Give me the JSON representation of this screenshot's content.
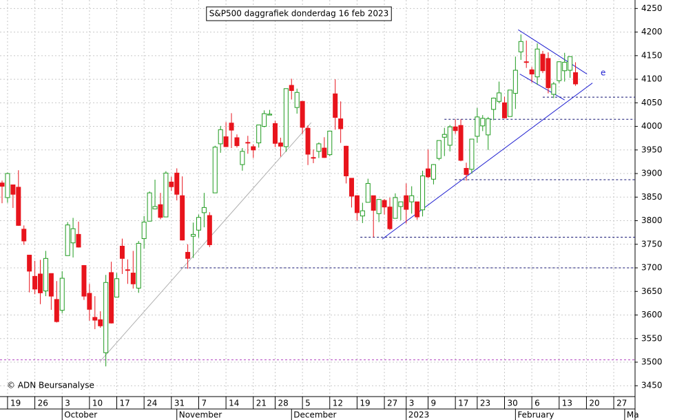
{
  "chart_data": {
    "type": "candlestick",
    "title": "S&P500 daggrafiek donderdag 16 feb 2023",
    "credit": "© ADN Beursanalyse",
    "up_color": "#1e9a1e",
    "down_color": "#e8141c",
    "grid": true,
    "ylim": [
      3427,
      4268
    ],
    "xlim": [
      -0.38,
      115.9
    ],
    "yticks": [
      3450,
      3500,
      3550,
      3600,
      3650,
      3700,
      3750,
      3800,
      3850,
      3900,
      3950,
      4000,
      4050,
      4100,
      4150,
      4200,
      4250
    ],
    "xticks": [
      {
        "value": 1,
        "label": "19"
      },
      {
        "value": 6,
        "label": "26"
      },
      {
        "value": 11,
        "label": "3"
      },
      {
        "value": 16,
        "label": "10"
      },
      {
        "value": 21,
        "label": "17"
      },
      {
        "value": 26,
        "label": "24"
      },
      {
        "value": 31,
        "label": "31"
      },
      {
        "value": 36,
        "label": "7"
      },
      {
        "value": 41,
        "label": "14"
      },
      {
        "value": 46,
        "label": "21"
      },
      {
        "value": 50,
        "label": "28"
      },
      {
        "value": 55,
        "label": "5"
      },
      {
        "value": 60,
        "label": "12"
      },
      {
        "value": 65,
        "label": "19"
      },
      {
        "value": 70,
        "label": "27"
      },
      {
        "value": 74,
        "label": "3"
      },
      {
        "value": 78,
        "label": "9"
      },
      {
        "value": 83,
        "label": "17"
      },
      {
        "value": 87,
        "label": "23"
      },
      {
        "value": 92,
        "label": "30"
      },
      {
        "value": 97,
        "label": "6"
      },
      {
        "value": 102,
        "label": "13"
      },
      {
        "value": 107,
        "label": "20"
      },
      {
        "value": 112,
        "label": "27"
      }
    ],
    "months": [
      {
        "value": 11,
        "label": "October"
      },
      {
        "value": 32,
        "label": "November"
      },
      {
        "value": 53,
        "label": "December"
      },
      {
        "value": 74,
        "label": "2023"
      },
      {
        "value": 94,
        "label": "February"
      },
      {
        "value": 114,
        "label": "Ma"
      }
    ],
    "ohlc": [
      [
        3880,
        3885,
        3837,
        3873
      ],
      [
        3849,
        3902,
        3838,
        3900
      ],
      [
        3876,
        3876,
        3827,
        3856
      ],
      [
        3871,
        3907,
        3789,
        3790
      ],
      [
        3782,
        3790,
        3749,
        3757
      ],
      [
        3727,
        3727,
        3648,
        3693
      ],
      [
        3682,
        3715,
        3644,
        3655
      ],
      [
        3687,
        3717,
        3623,
        3647
      ],
      [
        3651,
        3736,
        3640,
        3720
      ],
      [
        3688,
        3688,
        3611,
        3640
      ],
      [
        3633,
        3672,
        3584,
        3586
      ],
      [
        3610,
        3693,
        3604,
        3678
      ],
      [
        3726,
        3797,
        3726,
        3791
      ],
      [
        3753,
        3806,
        3722,
        3783
      ],
      [
        3771,
        3798,
        3743,
        3744
      ],
      [
        3705,
        3706,
        3632,
        3640
      ],
      [
        3646,
        3666,
        3588,
        3612
      ],
      [
        3595,
        3640,
        3570,
        3589
      ],
      [
        3590,
        3608,
        3573,
        3577
      ],
      [
        3520,
        3685,
        3491,
        3669
      ],
      [
        3690,
        3713,
        3582,
        3583
      ],
      [
        3638,
        3689,
        3638,
        3677
      ],
      [
        3746,
        3762,
        3687,
        3720
      ],
      [
        3696,
        3718,
        3666,
        3695
      ],
      [
        3689,
        3736,
        3656,
        3666
      ],
      [
        3657,
        3757,
        3647,
        3752
      ],
      [
        3762,
        3810,
        3741,
        3797
      ],
      [
        3799,
        3862,
        3799,
        3859
      ],
      [
        3825,
        3887,
        3824,
        3830
      ],
      [
        3834,
        3859,
        3803,
        3807
      ],
      [
        3808,
        3905,
        3808,
        3901
      ],
      [
        3882,
        3893,
        3863,
        3872
      ],
      [
        3901,
        3911,
        3843,
        3856
      ],
      [
        3853,
        3894,
        3758,
        3759
      ],
      [
        3733,
        3750,
        3698,
        3720
      ],
      [
        3767,
        3796,
        3721,
        3771
      ],
      [
        3780,
        3813,
        3764,
        3807
      ],
      [
        3817,
        3859,
        3786,
        3828
      ],
      [
        3811,
        3818,
        3744,
        3749
      ],
      [
        3859,
        3959,
        3859,
        3956
      ],
      [
        3963,
        4001,
        3944,
        3993
      ],
      [
        3978,
        4009,
        3956,
        3957
      ],
      [
        4007,
        4028,
        3954,
        3992
      ],
      [
        3976,
        3983,
        3955,
        3959
      ],
      [
        3919,
        3954,
        3906,
        3947
      ],
      [
        3966,
        3980,
        3942,
        3965
      ],
      [
        3957,
        3962,
        3933,
        3950
      ],
      [
        3965,
        4003,
        3955,
        4003
      ],
      [
        4000,
        4034,
        3998,
        4027
      ],
      [
        4024,
        4035,
        4024,
        4026
      ],
      [
        4006,
        4012,
        3956,
        3964
      ],
      [
        3965,
        3976,
        3936,
        3958
      ],
      [
        3957,
        4080,
        3946,
        4080
      ],
      [
        4087,
        4101,
        4057,
        4076
      ],
      [
        4040,
        4080,
        4027,
        4072
      ],
      [
        4053,
        4053,
        3984,
        3998
      ],
      [
        3996,
        4002,
        3918,
        3941
      ],
      [
        3934,
        3951,
        3922,
        3933
      ],
      [
        3947,
        3966,
        3933,
        3963
      ],
      [
        3954,
        3977,
        3933,
        3934
      ],
      [
        3940,
        3991,
        3937,
        3990
      ],
      [
        4069,
        4100,
        3993,
        4019
      ],
      [
        4016,
        4053,
        3965,
        3995
      ],
      [
        3958,
        3959,
        3879,
        3895
      ],
      [
        3890,
        3890,
        3828,
        3852
      ],
      [
        3853,
        3854,
        3800,
        3817
      ],
      [
        3810,
        3838,
        3795,
        3821
      ],
      [
        3839,
        3889,
        3839,
        3879
      ],
      [
        3853,
        3853,
        3765,
        3822
      ],
      [
        3815,
        3846,
        3797,
        3845
      ],
      [
        3843,
        3846,
        3813,
        3829
      ],
      [
        3829,
        3849,
        3780,
        3783
      ],
      [
        3805,
        3858,
        3805,
        3849
      ],
      [
        3830,
        3840,
        3801,
        3840
      ],
      [
        3853,
        3879,
        3794,
        3824
      ],
      [
        3840,
        3873,
        3815,
        3853
      ],
      [
        3840,
        3840,
        3802,
        3808
      ],
      [
        3823,
        3906,
        3809,
        3895
      ],
      [
        3910,
        3951,
        3890,
        3893
      ],
      [
        3888,
        3920,
        3877,
        3919
      ],
      [
        3932,
        3970,
        3928,
        3970
      ],
      [
        3977,
        3997,
        3937,
        3983
      ],
      [
        3960,
        4003,
        3947,
        3999
      ],
      [
        3999,
        4015,
        3984,
        3991
      ],
      [
        4002,
        4015,
        3926,
        3928
      ],
      [
        3911,
        3923,
        3885,
        3898
      ],
      [
        3909,
        3973,
        3900,
        3973
      ],
      [
        3979,
        4039,
        3965,
        4020
      ],
      [
        4001,
        4024,
        3990,
        4017
      ],
      [
        3982,
        4020,
        3950,
        4016
      ],
      [
        4036,
        4061,
        4013,
        4060
      ],
      [
        4053,
        4095,
        4049,
        4071
      ],
      [
        4050,
        4063,
        4017,
        4018
      ],
      [
        4021,
        4077,
        4021,
        4077
      ],
      [
        4070,
        4148,
        4037,
        4119
      ],
      [
        4158,
        4195,
        4141,
        4180
      ],
      [
        4137,
        4182,
        4124,
        4136
      ],
      [
        4120,
        4126,
        4093,
        4111
      ],
      [
        4105,
        4176,
        4088,
        4164
      ],
      [
        4153,
        4160,
        4113,
        4118
      ],
      [
        4144,
        4157,
        4070,
        4082
      ],
      [
        4068,
        4094,
        4060,
        4090
      ],
      [
        4097,
        4138,
        4092,
        4137
      ],
      [
        4118,
        4156,
        4095,
        4136
      ],
      [
        4119,
        4148,
        4103,
        4148
      ],
      [
        4114,
        4136,
        4086,
        4090
      ]
    ],
    "levels": [
      {
        "value": 3505,
        "from": -0.38,
        "color": "#b040c0"
      },
      {
        "value": 3700,
        "from": 32.7,
        "color": "#101070"
      },
      {
        "value": 3765,
        "from": 65.6,
        "color": "#101070"
      },
      {
        "value": 3887,
        "from": 82.9,
        "color": "#101070"
      },
      {
        "value": 4015,
        "from": 81,
        "color": "#101070"
      },
      {
        "value": 4062,
        "from": 99,
        "color": "#101070"
      }
    ],
    "trendlines": [
      {
        "from": [
          17.9,
          3501
        ],
        "to": [
          56.6,
          4008
        ],
        "color": "#b0b0b0"
      },
      {
        "from": [
          69.6,
          3761
        ],
        "to": [
          108.1,
          4092
        ],
        "color": "#2020d0"
      },
      {
        "from": [
          94.5,
          4205
        ],
        "to": [
          107.1,
          4111
        ],
        "color": "#2020d0"
      },
      {
        "from": [
          94.8,
          4111
        ],
        "to": [
          103,
          4056
        ],
        "color": "#2020d0"
      }
    ],
    "annotation": {
      "text": "e",
      "x": 109.6,
      "y": 4113,
      "color": "#2020d0"
    }
  }
}
